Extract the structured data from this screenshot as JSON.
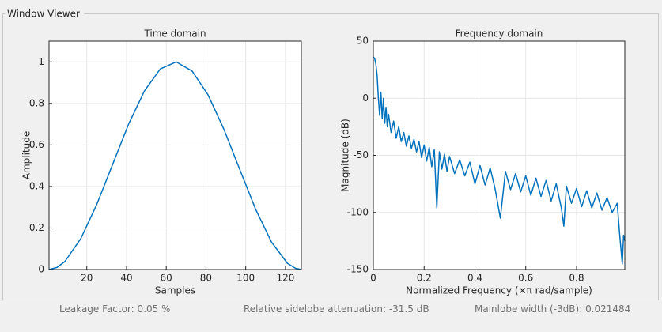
{
  "window_title": "Window Viewer",
  "chart_data": [
    {
      "type": "line",
      "title": "Time domain",
      "xlabel": "Samples",
      "ylabel": "Amplitude",
      "x": [
        1,
        5,
        9,
        17,
        25,
        33,
        41,
        49,
        57,
        65,
        73,
        81,
        89,
        97,
        105,
        113,
        121,
        125,
        128
      ],
      "values": [
        0,
        0.01,
        0.039,
        0.149,
        0.313,
        0.506,
        0.699,
        0.86,
        0.966,
        1.0,
        0.956,
        0.842,
        0.676,
        0.482,
        0.29,
        0.132,
        0.03,
        0.006,
        0
      ],
      "color": "#0072bd",
      "grid": true,
      "xlim": [
        1,
        128
      ],
      "xticks": [
        20,
        40,
        60,
        80,
        100,
        120
      ],
      "ylim": [
        0,
        1.1
      ],
      "yticks": [
        0,
        0.2,
        0.4,
        0.6,
        0.8,
        1
      ]
    },
    {
      "type": "line",
      "title": "Frequency domain",
      "xlabel": "Normalized Frequency  (×π rad/sample)",
      "ylabel": "Magnitude (dB)",
      "x": [
        0,
        0.005,
        0.01,
        0.015,
        0.02,
        0.025,
        0.03,
        0.035,
        0.04,
        0.045,
        0.05,
        0.055,
        0.06,
        0.07,
        0.08,
        0.09,
        0.1,
        0.11,
        0.12,
        0.13,
        0.14,
        0.15,
        0.16,
        0.17,
        0.18,
        0.19,
        0.2,
        0.21,
        0.22,
        0.23,
        0.24,
        0.25,
        0.26,
        0.27,
        0.28,
        0.29,
        0.3,
        0.32,
        0.34,
        0.36,
        0.38,
        0.4,
        0.42,
        0.44,
        0.46,
        0.48,
        0.5,
        0.52,
        0.54,
        0.56,
        0.58,
        0.6,
        0.62,
        0.64,
        0.66,
        0.68,
        0.7,
        0.72,
        0.74,
        0.75,
        0.76,
        0.78,
        0.8,
        0.82,
        0.84,
        0.86,
        0.88,
        0.9,
        0.92,
        0.94,
        0.96,
        0.97,
        0.98,
        0.985,
        0.99
      ],
      "values": [
        36,
        35,
        30,
        20,
        0,
        -15,
        5,
        -18,
        0,
        -22,
        -8,
        -25,
        -14,
        -30,
        -20,
        -35,
        -25,
        -38,
        -30,
        -42,
        -33,
        -44,
        -36,
        -47,
        -38,
        -52,
        -41,
        -55,
        -43,
        -60,
        -45,
        -96,
        -47,
        -62,
        -49,
        -64,
        -51,
        -66,
        -54,
        -68,
        -56,
        -75,
        -59,
        -76,
        -61,
        -80,
        -105,
        -64,
        -80,
        -66,
        -82,
        -68,
        -85,
        -70,
        -86,
        -72,
        -90,
        -75,
        -96,
        -112,
        -77,
        -92,
        -79,
        -95,
        -81,
        -96,
        -83,
        -98,
        -87,
        -100,
        -92,
        -120,
        -145,
        -120,
        -125
      ],
      "color": "#0072bd",
      "grid": true,
      "xlim": [
        0,
        0.99
      ],
      "xticks": [
        0,
        0.2,
        0.4,
        0.6,
        0.8
      ],
      "ylim": [
        -150,
        50
      ],
      "yticks": [
        -150,
        -100,
        -50,
        0,
        50
      ]
    }
  ],
  "footer": [
    "Leakage Factor: 0.05 %",
    "Relative sidelobe attenuation: -31.5 dB",
    "Mainlobe width (-3dB): 0.021484"
  ]
}
